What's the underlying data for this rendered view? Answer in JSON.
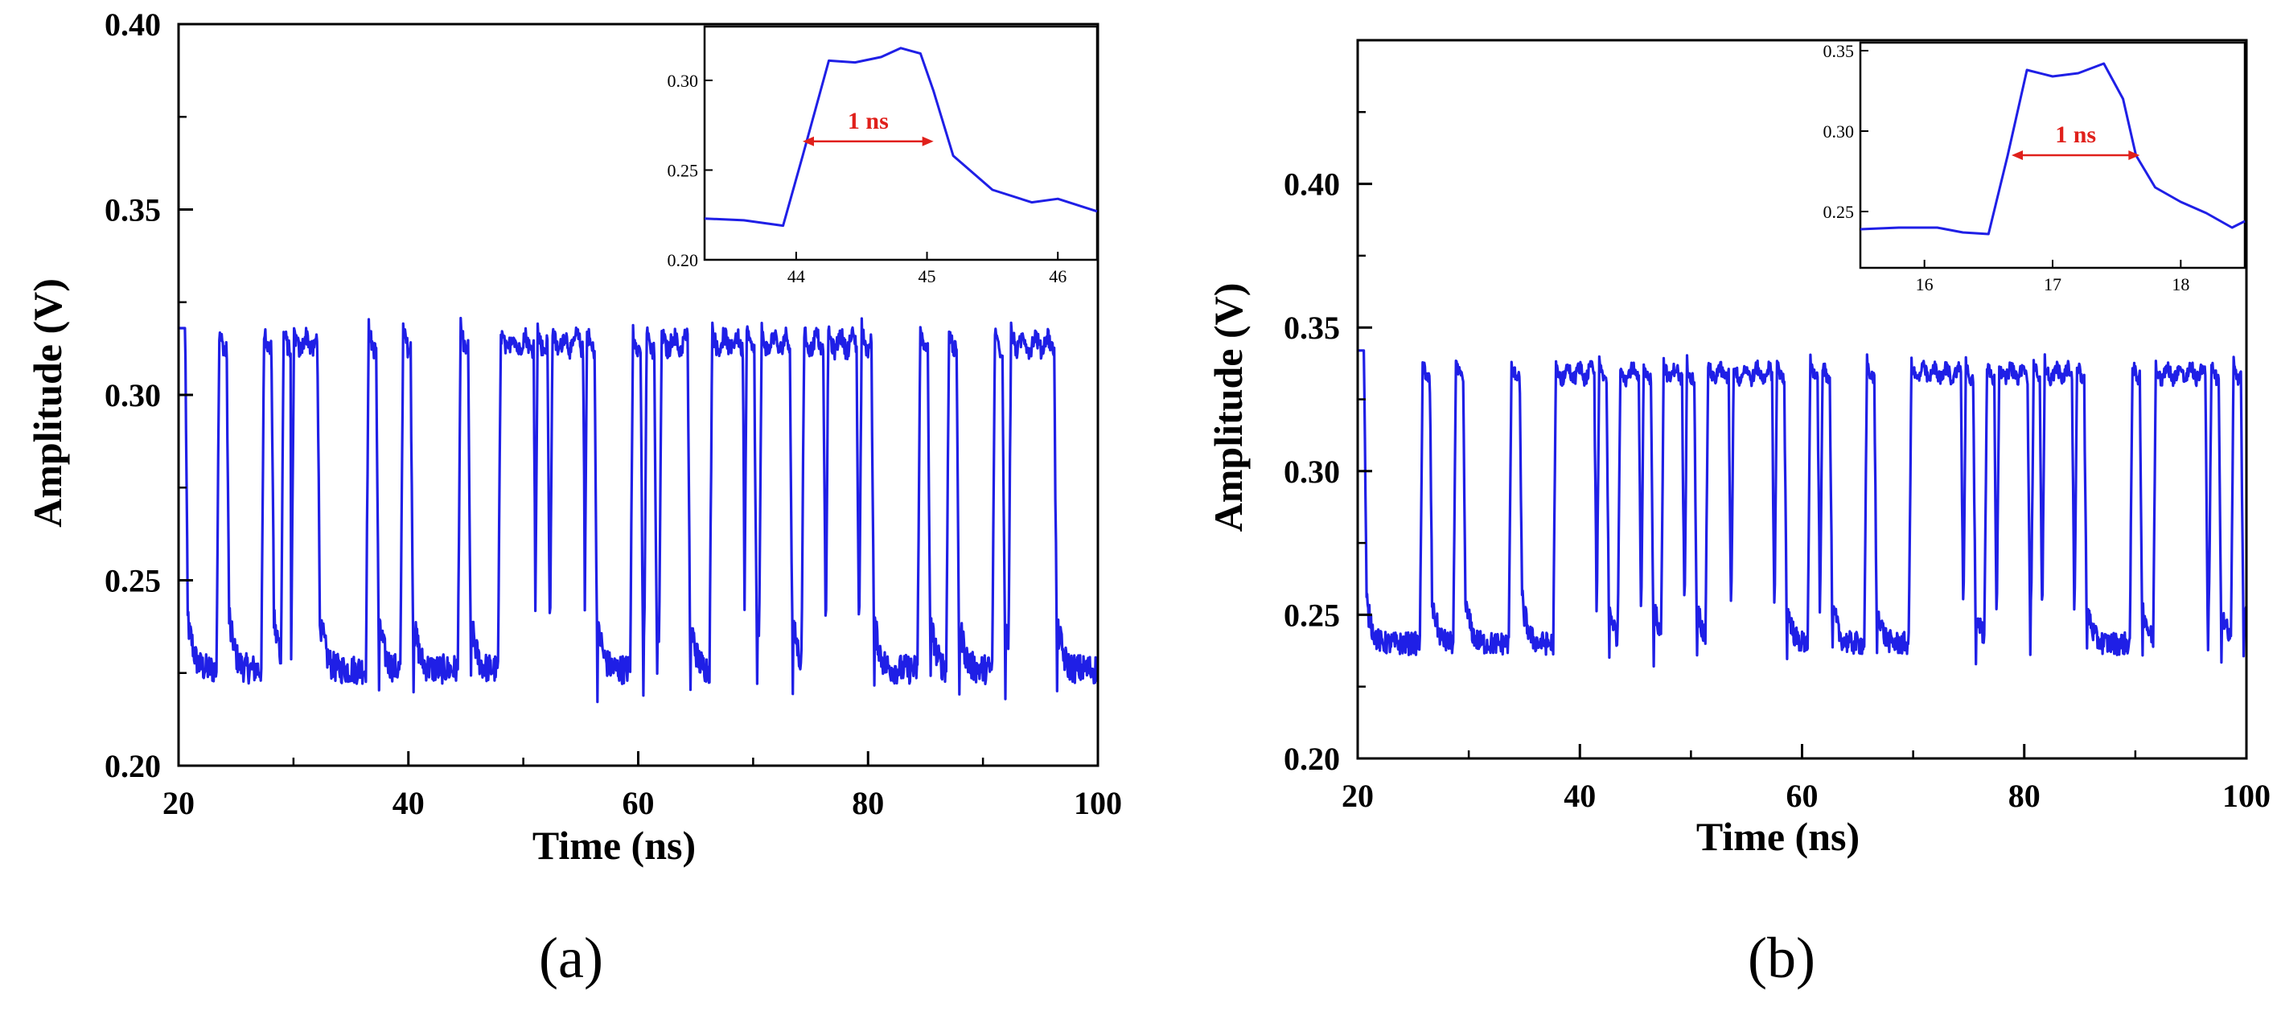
{
  "figure": {
    "panel_a_label": "(a)",
    "panel_b_label": "(b)",
    "trace_color": "#1f1fe6",
    "annotation_color": "#e0201b"
  },
  "chart_data": [
    {
      "id": "a",
      "type": "line",
      "xlabel": "Time (ns)",
      "ylabel": "Amplitude (V)",
      "xlim": [
        20,
        100
      ],
      "ylim": [
        0.2,
        0.4
      ],
      "xticks": [
        20,
        40,
        60,
        80,
        100
      ],
      "xtick_labels": [
        "20",
        "40",
        "60",
        "80",
        "100"
      ],
      "yticks": [
        0.2,
        0.25,
        0.3,
        0.35,
        0.4
      ],
      "ytick_labels": [
        "0.20",
        "0.25",
        "0.30",
        "0.35",
        "0.40"
      ],
      "grid": false,
      "baseline_low": 0.226,
      "level_high": 0.318,
      "start_level": 0.318,
      "pulses": [
        [
          23.3,
          24.2
        ],
        [
          27.2,
          28.1
        ],
        [
          28.9,
          29.8
        ],
        [
          29.8,
          32.1
        ],
        [
          36.3,
          37.2
        ],
        [
          39.3,
          40.2
        ],
        [
          44.3,
          45.2
        ],
        [
          47.8,
          50.9
        ],
        [
          51.0,
          52.1
        ],
        [
          52.3,
          55.2
        ],
        [
          55.3,
          56.2
        ],
        [
          59.3,
          60.2
        ],
        [
          60.5,
          61.4
        ],
        [
          61.8,
          64.3
        ],
        [
          66.2,
          69.1
        ],
        [
          69.2,
          70.1
        ],
        [
          70.5,
          73.2
        ],
        [
          74.2,
          76.1
        ],
        [
          76.3,
          79.0
        ],
        [
          79.2,
          80.3
        ],
        [
          84.3,
          85.2
        ],
        [
          86.8,
          87.7
        ],
        [
          90.8,
          91.7
        ],
        [
          92.2,
          96.2
        ]
      ],
      "inset": {
        "xlim": [
          43.3,
          46.3
        ],
        "ylim": [
          0.2,
          0.33
        ],
        "xticks": [
          44,
          45,
          46
        ],
        "xtick_labels": [
          "44",
          "45",
          "46"
        ],
        "yticks": [
          0.2,
          0.25,
          0.3
        ],
        "ytick_labels": [
          "0.20",
          "0.25",
          "0.30"
        ],
        "x": [
          43.3,
          43.6,
          43.9,
          44.05,
          44.25,
          44.45,
          44.65,
          44.8,
          44.95,
          45.05,
          45.2,
          45.5,
          45.8,
          46.0,
          46.3
        ],
        "y": [
          0.223,
          0.222,
          0.219,
          0.258,
          0.311,
          0.31,
          0.313,
          0.318,
          0.315,
          0.294,
          0.258,
          0.239,
          0.232,
          0.234,
          0.227
        ],
        "annotation_text": "1 ns",
        "arrow_x": [
          44.05,
          45.05
        ],
        "arrow_y": 0.266
      }
    },
    {
      "id": "b",
      "type": "line",
      "xlabel": "Time (ns)",
      "ylabel": "Amplitude (V)",
      "xlim": [
        20,
        100
      ],
      "ylim": [
        0.2,
        0.45
      ],
      "xticks": [
        20,
        40,
        60,
        80,
        100
      ],
      "xtick_labels": [
        "20",
        "40",
        "60",
        "80",
        "100"
      ],
      "yticks": [
        0.2,
        0.25,
        0.3,
        0.35,
        0.4
      ],
      "ytick_labels": [
        "0.20",
        "0.25",
        "0.30",
        "0.35",
        "0.40"
      ],
      "grid": false,
      "baseline_low": 0.24,
      "level_high": 0.338,
      "start_level": 0.342,
      "pulses": [
        [
          25.6,
          26.5
        ],
        [
          28.6,
          29.5
        ],
        [
          33.6,
          34.6
        ],
        [
          37.6,
          41.3
        ],
        [
          41.5,
          42.4
        ],
        [
          43.4,
          45.3
        ],
        [
          45.5,
          46.4
        ],
        [
          47.3,
          49.2
        ],
        [
          49.4,
          50.3
        ],
        [
          51.3,
          53.4
        ],
        [
          53.6,
          57.3
        ],
        [
          57.5,
          58.4
        ],
        [
          60.5,
          61.4
        ],
        [
          61.6,
          62.5
        ],
        [
          65.6,
          66.5
        ],
        [
          69.6,
          74.3
        ],
        [
          74.5,
          75.4
        ],
        [
          76.4,
          77.3
        ],
        [
          77.5,
          80.3
        ],
        [
          80.6,
          81.4
        ],
        [
          81.6,
          84.3
        ],
        [
          84.5,
          85.4
        ],
        [
          89.5,
          90.4
        ],
        [
          91.6,
          96.3
        ],
        [
          96.6,
          97.5
        ],
        [
          98.6,
          99.5
        ]
      ],
      "inset": {
        "xlim": [
          15.5,
          18.5
        ],
        "ylim": [
          0.215,
          0.355
        ],
        "xticks": [
          16,
          17,
          18
        ],
        "xtick_labels": [
          "16",
          "17",
          "18"
        ],
        "yticks": [
          0.25,
          0.3,
          0.35
        ],
        "ytick_labels": [
          "0.25",
          "0.30",
          "0.35"
        ],
        "x": [
          15.5,
          15.8,
          16.1,
          16.3,
          16.5,
          16.65,
          16.8,
          17.0,
          17.2,
          17.4,
          17.55,
          17.65,
          17.8,
          18.0,
          18.2,
          18.4,
          18.5
        ],
        "y": [
          0.239,
          0.24,
          0.24,
          0.237,
          0.236,
          0.285,
          0.338,
          0.334,
          0.336,
          0.342,
          0.32,
          0.285,
          0.265,
          0.256,
          0.249,
          0.24,
          0.244
        ]
      }
    }
  ]
}
